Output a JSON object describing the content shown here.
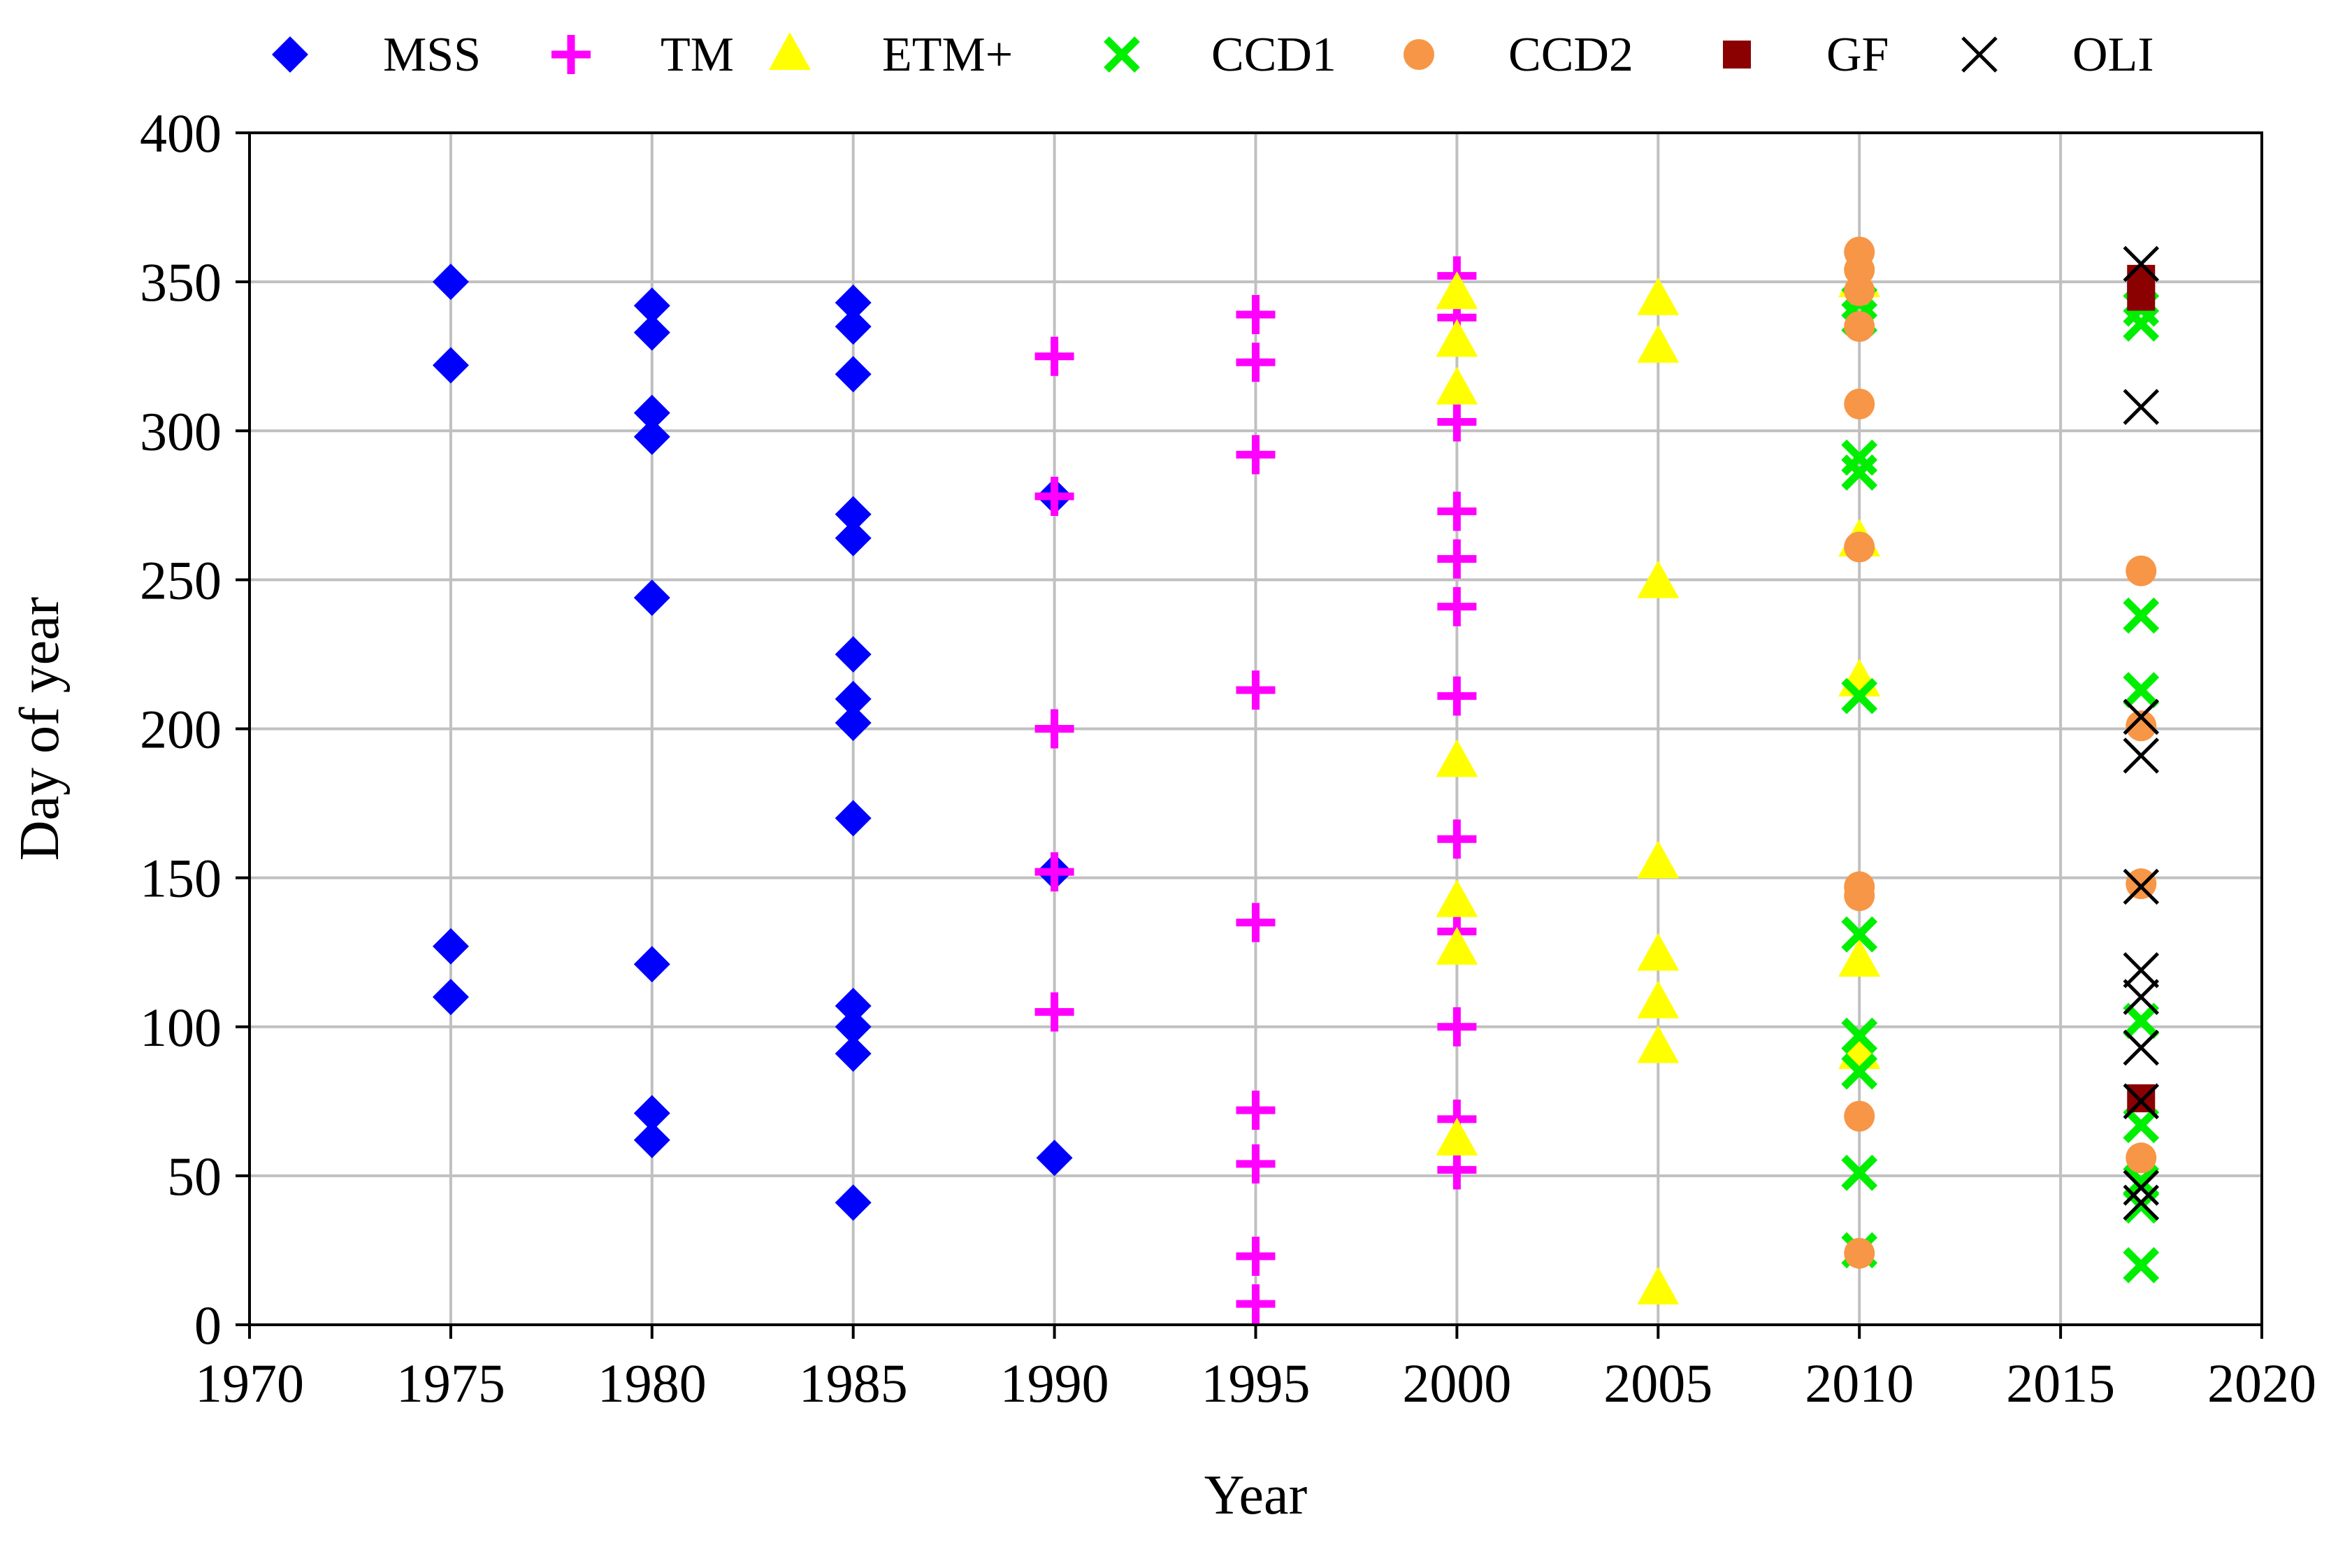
{
  "chart_data": {
    "type": "scatter",
    "title": "",
    "xlabel": "Year",
    "ylabel": "Day of year",
    "xlim": [
      1970,
      2020
    ],
    "ylim": [
      0,
      400
    ],
    "xticks": [
      1970,
      1975,
      1980,
      1985,
      1990,
      1995,
      2000,
      2005,
      2010,
      2015,
      2020
    ],
    "yticks": [
      0,
      50,
      100,
      150,
      200,
      250,
      300,
      350,
      400
    ],
    "grid": true,
    "legend_position": "top",
    "series": [
      {
        "name": "MSS",
        "marker": "diamond",
        "color": "#0000ff",
        "points": [
          [
            1975,
            350
          ],
          [
            1975,
            322
          ],
          [
            1975,
            127
          ],
          [
            1975,
            110
          ],
          [
            1980,
            342
          ],
          [
            1980,
            333
          ],
          [
            1980,
            306
          ],
          [
            1980,
            298
          ],
          [
            1980,
            244
          ],
          [
            1980,
            121
          ],
          [
            1980,
            71
          ],
          [
            1980,
            62
          ],
          [
            1985,
            343
          ],
          [
            1985,
            335
          ],
          [
            1985,
            319
          ],
          [
            1985,
            272
          ],
          [
            1985,
            264
          ],
          [
            1985,
            225
          ],
          [
            1985,
            210
          ],
          [
            1985,
            202
          ],
          [
            1985,
            170
          ],
          [
            1985,
            107
          ],
          [
            1985,
            100
          ],
          [
            1985,
            91
          ],
          [
            1985,
            41
          ],
          [
            1990,
            278
          ],
          [
            1990,
            152
          ],
          [
            1990,
            56
          ]
        ]
      },
      {
        "name": "TM",
        "marker": "plus",
        "color": "#ff00ff",
        "points": [
          [
            1990,
            325
          ],
          [
            1990,
            278
          ],
          [
            1990,
            200
          ],
          [
            1990,
            152
          ],
          [
            1990,
            105
          ],
          [
            1995,
            339
          ],
          [
            1995,
            323
          ],
          [
            1995,
            292
          ],
          [
            1995,
            213
          ],
          [
            1995,
            135
          ],
          [
            1995,
            72
          ],
          [
            1995,
            54
          ],
          [
            1995,
            23
          ],
          [
            1995,
            7
          ],
          [
            2000,
            352
          ],
          [
            2000,
            338
          ],
          [
            2000,
            303
          ],
          [
            2000,
            273
          ],
          [
            2000,
            257
          ],
          [
            2000,
            241
          ],
          [
            2000,
            211
          ],
          [
            2000,
            163
          ],
          [
            2000,
            132
          ],
          [
            2000,
            100
          ],
          [
            2000,
            69
          ],
          [
            2000,
            52
          ]
        ]
      },
      {
        "name": "ETM+",
        "marker": "triangle",
        "color": "#ffff00",
        "points": [
          [
            2000,
            346
          ],
          [
            2000,
            330
          ],
          [
            2000,
            314
          ],
          [
            2000,
            189
          ],
          [
            2000,
            142
          ],
          [
            2000,
            126
          ],
          [
            2000,
            62
          ],
          [
            2005,
            344
          ],
          [
            2005,
            328
          ],
          [
            2005,
            249
          ],
          [
            2005,
            155
          ],
          [
            2005,
            124
          ],
          [
            2005,
            108
          ],
          [
            2005,
            93
          ],
          [
            2005,
            12
          ],
          [
            2010,
            350
          ],
          [
            2010,
            263
          ],
          [
            2010,
            216
          ],
          [
            2010,
            122
          ],
          [
            2010,
            91
          ]
        ]
      },
      {
        "name": "CCD1",
        "marker": "x",
        "color": "#00ee00",
        "points": [
          [
            2010,
            343
          ],
          [
            2010,
            338
          ],
          [
            2010,
            291
          ],
          [
            2010,
            286
          ],
          [
            2010,
            211
          ],
          [
            2010,
            131
          ],
          [
            2010,
            97
          ],
          [
            2010,
            85
          ],
          [
            2010,
            51
          ],
          [
            2010,
            25
          ],
          [
            2017,
            341
          ],
          [
            2017,
            336
          ],
          [
            2017,
            238
          ],
          [
            2017,
            213
          ],
          [
            2017,
            102
          ],
          [
            2017,
            67
          ],
          [
            2017,
            48
          ],
          [
            2017,
            40
          ],
          [
            2017,
            20
          ]
        ]
      },
      {
        "name": "CCD2",
        "marker": "circle",
        "color": "#f79646",
        "points": [
          [
            2010,
            360
          ],
          [
            2010,
            354
          ],
          [
            2010,
            347
          ],
          [
            2010,
            335
          ],
          [
            2010,
            309
          ],
          [
            2010,
            261
          ],
          [
            2010,
            147
          ],
          [
            2010,
            144
          ],
          [
            2010,
            70
          ],
          [
            2010,
            24
          ],
          [
            2017,
            253
          ],
          [
            2017,
            201
          ],
          [
            2017,
            148
          ],
          [
            2017,
            56
          ]
        ]
      },
      {
        "name": "GF",
        "marker": "square",
        "color": "#8b0000",
        "points": [
          [
            2017,
            351
          ],
          [
            2017,
            345
          ],
          [
            2017,
            76
          ]
        ]
      },
      {
        "name": "OLI",
        "marker": "x-thin",
        "color": "#000000",
        "points": [
          [
            2017,
            356
          ],
          [
            2017,
            308
          ],
          [
            2017,
            204
          ],
          [
            2017,
            191
          ],
          [
            2017,
            147
          ],
          [
            2017,
            119
          ],
          [
            2017,
            110
          ],
          [
            2017,
            93
          ],
          [
            2017,
            75
          ],
          [
            2017,
            46
          ],
          [
            2017,
            41
          ]
        ]
      }
    ]
  }
}
